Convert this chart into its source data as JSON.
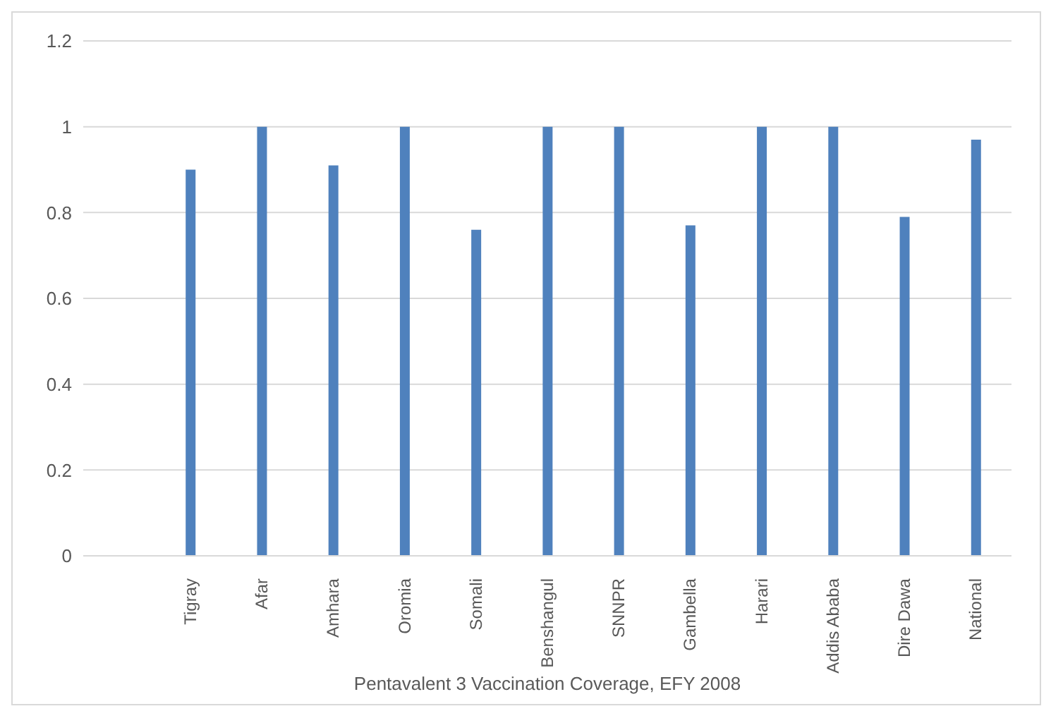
{
  "chart_data": {
    "type": "bar",
    "xlabel": "Pentavalent 3 Vaccination Coverage, EFY 2008",
    "categories": [
      null,
      "Tigray",
      "Afar",
      "Amhara",
      "Oromia",
      "Somali",
      "Benshangul",
      "SNNPR",
      "Gambella",
      "Harari",
      "Addis Ababa",
      "Dire Dawa",
      "National"
    ],
    "values": [
      null,
      0.9,
      1,
      0.91,
      1,
      0.76,
      1,
      1,
      0.77,
      1,
      1,
      0.79,
      0.97
    ],
    "color": "#4f81bd",
    "ylim": [
      0,
      1.2
    ],
    "yticks": [
      0,
      0.2,
      0.4,
      0.6,
      0.8,
      1,
      1.2
    ],
    "grid": "y",
    "legend": false
  }
}
